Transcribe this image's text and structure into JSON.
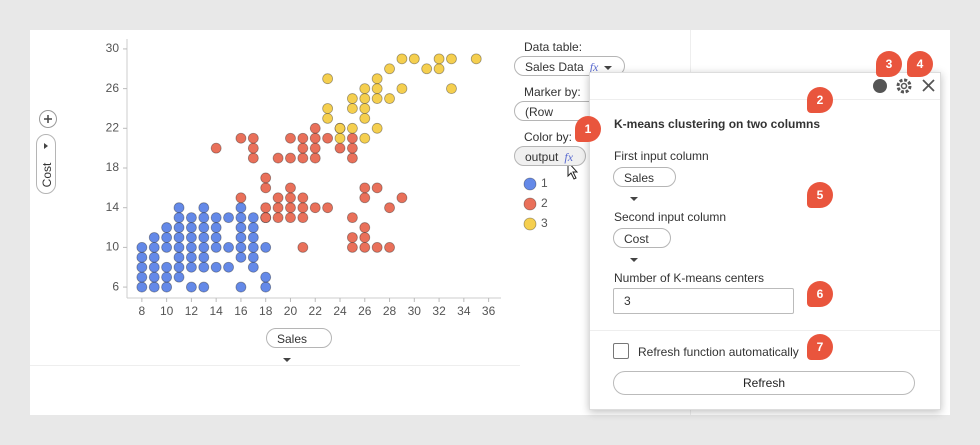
{
  "chart_data": {
    "type": "scatter",
    "x_label": "Sales",
    "y_label": "Cost",
    "xlim": [
      6.8,
      37
    ],
    "ylim": [
      4.9,
      31
    ],
    "xticks": [
      8,
      10,
      12,
      14,
      16,
      18,
      20,
      22,
      24,
      26,
      28,
      30,
      32,
      34,
      36
    ],
    "yticks": [
      6,
      10,
      14,
      18,
      22,
      26,
      30
    ],
    "series": [
      {
        "name": "1",
        "color": "#6489e8",
        "x": [
          8,
          8,
          8,
          8,
          8,
          9,
          9,
          9,
          9,
          9,
          9,
          10,
          10,
          10,
          10,
          10,
          10,
          11,
          11,
          11,
          11,
          11,
          11,
          11,
          11,
          12,
          12,
          12,
          12,
          12,
          12,
          12,
          13,
          13,
          13,
          13,
          13,
          13,
          13,
          13,
          14,
          14,
          14,
          14,
          14,
          15,
          15,
          15,
          16,
          16,
          16,
          16,
          16,
          16,
          16,
          17,
          17,
          17,
          17,
          17,
          17,
          18,
          18,
          18,
          18
        ],
        "y": [
          6,
          7,
          8,
          9,
          10,
          6,
          7,
          8,
          9,
          10,
          11,
          6,
          7,
          8,
          10,
          11,
          12,
          7,
          8,
          9,
          10,
          11,
          12,
          13,
          14,
          6,
          8,
          9,
          10,
          11,
          12,
          13,
          6,
          8,
          9,
          10,
          11,
          12,
          13,
          14,
          8,
          10,
          11,
          12,
          13,
          8,
          10,
          13,
          6,
          9,
          10,
          11,
          12,
          13,
          14,
          8,
          9,
          10,
          11,
          12,
          13,
          6,
          7,
          10,
          13
        ]
      },
      {
        "name": "2",
        "color": "#e9705a",
        "x": [
          14,
          16,
          16,
          17,
          17,
          17,
          18,
          18,
          18,
          18,
          19,
          19,
          19,
          19,
          20,
          20,
          20,
          20,
          20,
          20,
          21,
          21,
          21,
          21,
          21,
          21,
          21,
          22,
          22,
          22,
          22,
          22,
          23,
          23,
          24,
          24,
          25,
          25,
          25,
          25,
          25,
          25,
          26,
          26,
          26,
          26,
          26,
          27,
          27,
          28,
          28,
          29
        ],
        "y": [
          20,
          15,
          21,
          19,
          20,
          21,
          16,
          13,
          14,
          17,
          13,
          14,
          15,
          19,
          13,
          14,
          15,
          16,
          19,
          21,
          13,
          14,
          15,
          19,
          20,
          21,
          10,
          14,
          19,
          20,
          21,
          22,
          14,
          21,
          20,
          22,
          19,
          20,
          21,
          11,
          10,
          13,
          10,
          11,
          12,
          15,
          16,
          10,
          16,
          14,
          10,
          15
        ]
      },
      {
        "name": "3",
        "color": "#f5cf4f",
        "x": [
          23,
          23,
          23,
          24,
          24,
          25,
          25,
          25,
          26,
          26,
          26,
          26,
          26,
          27,
          27,
          27,
          27,
          28,
          28,
          29,
          29,
          30,
          31,
          32,
          32,
          33,
          33,
          35
        ],
        "y": [
          27,
          23,
          24,
          21,
          22,
          22,
          24,
          25,
          21,
          23,
          24,
          25,
          26,
          22,
          25,
          26,
          27,
          25,
          28,
          26,
          29,
          29,
          28,
          28,
          29,
          26,
          29,
          29
        ]
      }
    ]
  },
  "config": {
    "data_table_label": "Data table:",
    "data_table": "Sales Data",
    "marker_by_label": "Marker by:",
    "marker_by": "(Row Numbe",
    "color_by_label": "Color by:",
    "color_by": "output",
    "function_icon": "fx"
  },
  "panel": {
    "title": "K-means clustering on two columns",
    "first_input_label": "First input column",
    "first_input": "Sales",
    "second_input_label": "Second input column",
    "second_input": "Cost",
    "centers_label": "Number of K-means centers",
    "centers_value": "3",
    "auto_refresh_label": "Refresh function automatically",
    "refresh_button": "Refresh"
  },
  "badges": [
    "1",
    "2",
    "3",
    "4",
    "5",
    "6",
    "7"
  ]
}
